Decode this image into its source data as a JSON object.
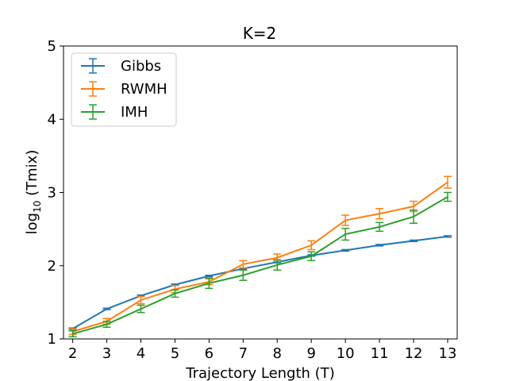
{
  "chart_data": {
    "type": "line",
    "title": "K=2",
    "xlabel": "Trajectory Length (T)",
    "ylabel_main": "log",
    "ylabel_sub": "10",
    "ylabel_rest": " (Tmix)",
    "x": [
      2,
      3,
      4,
      5,
      6,
      7,
      8,
      9,
      10,
      11,
      12,
      13
    ],
    "xlim": [
      1.73,
      13.28
    ],
    "ylim": [
      1,
      5
    ],
    "xticks": [
      "2",
      "3",
      "4",
      "5",
      "6",
      "7",
      "8",
      "9",
      "10",
      "11",
      "12",
      "13"
    ],
    "yticks": [
      "1",
      "2",
      "3",
      "4",
      "5"
    ],
    "legend_position": "top-left",
    "grid": false,
    "series": [
      {
        "name": "Gibbs",
        "color": "#1f77b4",
        "values": [
          1.14,
          1.41,
          1.59,
          1.74,
          1.86,
          1.96,
          2.05,
          2.14,
          2.21,
          2.28,
          2.34,
          2.4
        ],
        "errors": [
          0.01,
          0.01,
          0.01,
          0.01,
          0.01,
          0.01,
          0.01,
          0.01,
          0.01,
          0.01,
          0.01,
          0.01
        ]
      },
      {
        "name": "RWMH",
        "color": "#ff7f0e",
        "values": [
          1.1,
          1.24,
          1.53,
          1.68,
          1.78,
          2.02,
          2.11,
          2.28,
          2.62,
          2.71,
          2.81,
          3.14
        ],
        "errors": [
          0.04,
          0.04,
          0.05,
          0.05,
          0.04,
          0.05,
          0.05,
          0.06,
          0.07,
          0.07,
          0.07,
          0.08
        ]
      },
      {
        "name": "IMH",
        "color": "#2ca02c",
        "values": [
          1.07,
          1.2,
          1.41,
          1.62,
          1.76,
          1.87,
          2.01,
          2.13,
          2.43,
          2.53,
          2.67,
          2.94
        ],
        "errors": [
          0.04,
          0.04,
          0.05,
          0.05,
          0.07,
          0.07,
          0.07,
          0.06,
          0.08,
          0.06,
          0.09,
          0.06
        ]
      }
    ]
  }
}
